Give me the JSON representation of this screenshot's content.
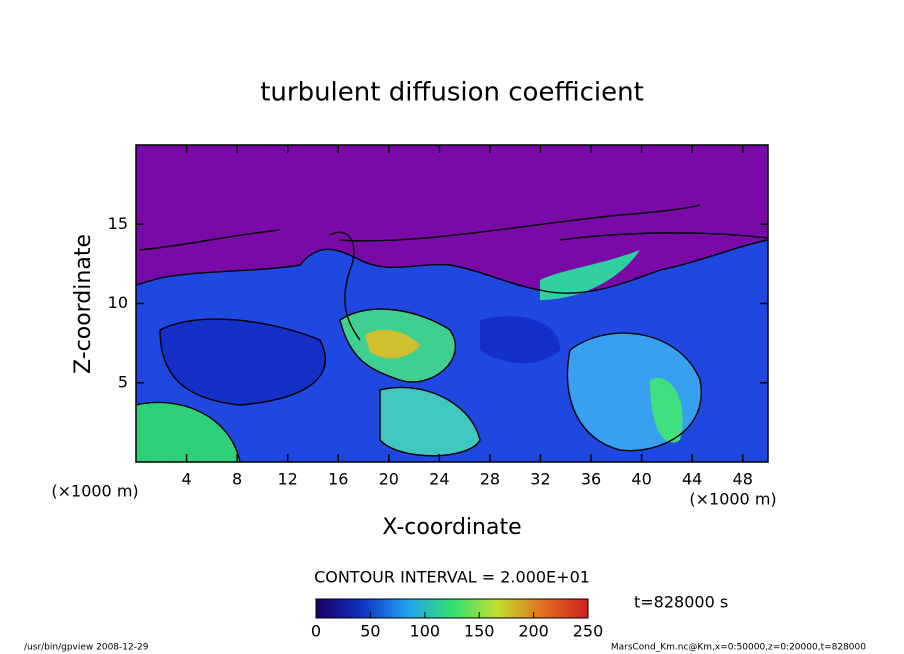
{
  "chart_data": {
    "type": "contour",
    "title": "turbulent diffusion coefficient",
    "xlabel": "X-coordinate",
    "ylabel": "Z-coordinate",
    "x_unit": "(×1000 m)",
    "xlim": [
      0,
      50
    ],
    "xticks": [
      4,
      8,
      12,
      16,
      20,
      24,
      28,
      32,
      36,
      40,
      44,
      48
    ],
    "ylim": [
      0,
      20
    ],
    "yticks": [
      5,
      10,
      15
    ],
    "contour_interval": "CONTOUR INTERVAL = 2.000E+01",
    "time": "t=828000 s",
    "colorbar": {
      "lim": [
        0,
        250
      ],
      "ticks": [
        0,
        50,
        100,
        150,
        200,
        250
      ],
      "colors": [
        "#1a0060",
        "#1030c0",
        "#20a0f0",
        "#30e070",
        "#c0e030",
        "#e07020",
        "#d02020"
      ]
    },
    "footer_left": "/usr/bin/gpview   2008-12-29",
    "footer_right": "MarsCond_Km.nc@Km,x=0:50000,z=0:20000,t=828000"
  }
}
